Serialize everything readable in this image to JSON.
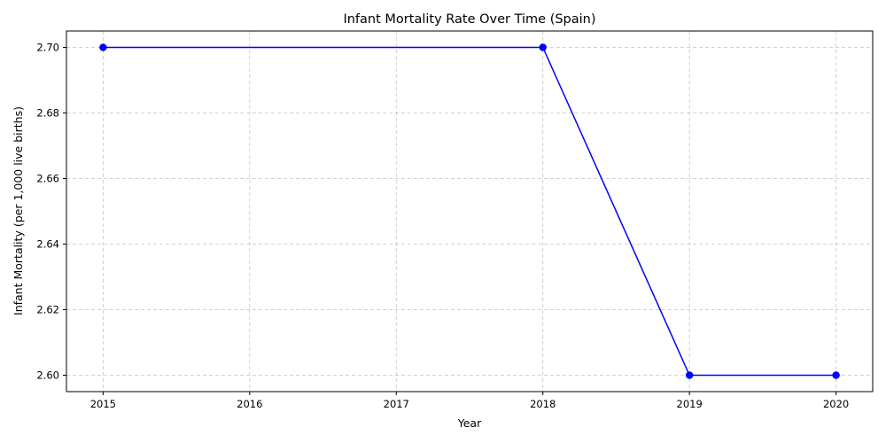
{
  "chart_data": {
    "type": "line",
    "title": "Infant Mortality Rate Over Time (Spain)",
    "xlabel": "Year",
    "ylabel": "Infant Mortality (per 1,000 live births)",
    "x": [
      2015,
      2018,
      2019,
      2020
    ],
    "xticks": [
      "2015",
      "2016",
      "2017",
      "2018",
      "2019",
      "2020"
    ],
    "yticks": [
      "2.60",
      "2.62",
      "2.64",
      "2.66",
      "2.68",
      "2.70"
    ],
    "xlim": [
      2014.75,
      2020.25
    ],
    "ylim": [
      2.595,
      2.705
    ],
    "grid": true,
    "series": [
      {
        "values": [
          2.7,
          2.7,
          2.6,
          2.6
        ],
        "color": "#0000ff",
        "marker": "circle"
      }
    ]
  }
}
